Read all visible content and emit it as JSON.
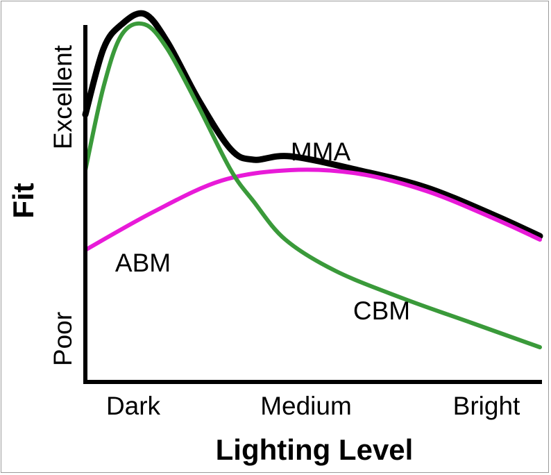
{
  "chart_data": {
    "type": "line",
    "title": "",
    "xlabel": "Lighting Level",
    "ylabel": "Fit",
    "x_tick_labels": [
      "Dark",
      "Medium",
      "Bright"
    ],
    "y_tick_labels": [
      "Poor",
      "Excellent"
    ],
    "xlim": [
      0,
      1
    ],
    "ylim": [
      0,
      1
    ],
    "grid": false,
    "legend": "none",
    "series": [
      {
        "name": "ABM",
        "color": "#e81ad8",
        "x": [
          0,
          0.15,
          0.3,
          0.45,
          0.6,
          0.75,
          0.9,
          1.0
        ],
        "y": [
          0.35,
          0.46,
          0.55,
          0.58,
          0.57,
          0.52,
          0.44,
          0.38
        ]
      },
      {
        "name": "CBM",
        "color": "#3a9a3a",
        "x": [
          0,
          0.04,
          0.08,
          0.13,
          0.18,
          0.25,
          0.32,
          0.37,
          0.44,
          0.55,
          0.7,
          0.85,
          1.0
        ],
        "y": [
          0.58,
          0.82,
          0.97,
          1.0,
          0.93,
          0.76,
          0.58,
          0.49,
          0.38,
          0.29,
          0.21,
          0.14,
          0.07
        ]
      },
      {
        "name": "MMA",
        "color": "#000000",
        "x": [
          0,
          0.04,
          0.08,
          0.13,
          0.18,
          0.25,
          0.32,
          0.37,
          0.45,
          0.6,
          0.75,
          0.9,
          1.0
        ],
        "y": [
          0.74,
          0.93,
          1.0,
          1.03,
          0.95,
          0.78,
          0.64,
          0.61,
          0.62,
          0.58,
          0.53,
          0.45,
          0.39
        ]
      }
    ],
    "annotations": [
      {
        "text": "MMA",
        "series": "MMA"
      },
      {
        "text": "ABM",
        "series": "ABM"
      },
      {
        "text": "CBM",
        "series": "CBM"
      }
    ]
  }
}
